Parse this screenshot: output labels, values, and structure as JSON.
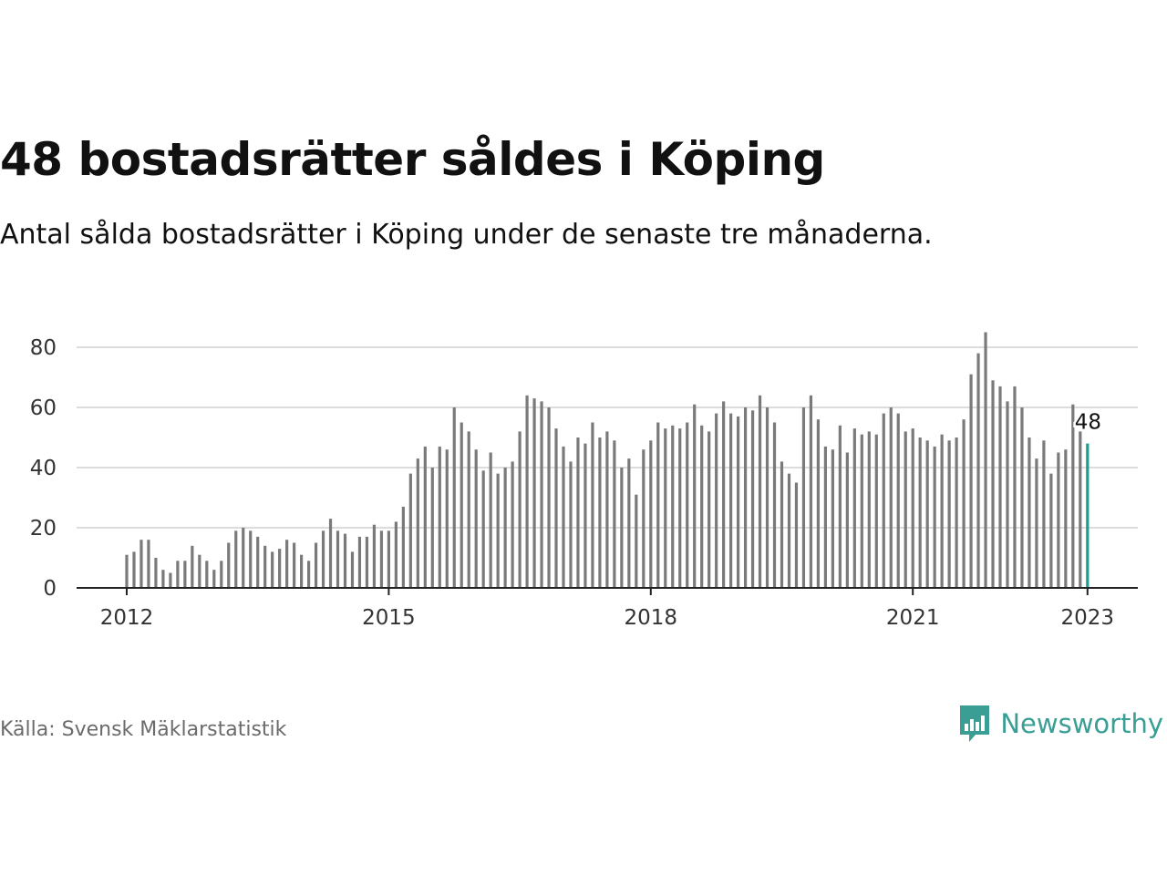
{
  "header": {
    "title": "48 bostadsrätter såldes i Köping",
    "subtitle": "Antal sålda bostadsrätter i Köping under de senaste tre månaderna."
  },
  "footer": {
    "source": "Källa: Svensk Mäklarstatistik",
    "brand": "Newsworthy",
    "brand_icon": "newsworthy-logo-icon",
    "brand_color": "#3a9e95"
  },
  "chart_data": {
    "type": "bar",
    "title": "48 bostadsrätter såldes i Köping",
    "subtitle": "Antal sålda bostadsrätter i Köping under de senaste tre månaderna.",
    "xlabel": "",
    "ylabel": "",
    "start": "2012-01",
    "frequency": "monthly",
    "x_ticks": [
      "2012",
      "2015",
      "2018",
      "2021",
      "2023"
    ],
    "y_ticks": [
      0,
      20,
      40,
      60,
      80
    ],
    "ylim": [
      0,
      85
    ],
    "grid": true,
    "bar_color": "#7a7a7a",
    "highlight_color": "#1a9e95",
    "highlight_label": "48",
    "values": [
      11,
      12,
      16,
      16,
      10,
      6,
      5,
      9,
      9,
      14,
      11,
      9,
      6,
      9,
      15,
      19,
      20,
      19,
      17,
      14,
      12,
      13,
      16,
      15,
      11,
      9,
      15,
      19,
      23,
      19,
      18,
      12,
      17,
      17,
      21,
      19,
      19,
      22,
      27,
      38,
      43,
      47,
      40,
      47,
      46,
      60,
      55,
      52,
      46,
      39,
      45,
      38,
      40,
      42,
      52,
      64,
      63,
      62,
      60,
      53,
      47,
      42,
      50,
      48,
      55,
      50,
      52,
      49,
      40,
      43,
      31,
      46,
      49,
      55,
      53,
      54,
      53,
      55,
      61,
      54,
      52,
      58,
      62,
      58,
      57,
      60,
      59,
      64,
      60,
      55,
      42,
      38,
      35,
      60,
      64,
      56,
      47,
      46,
      54,
      45,
      53,
      51,
      52,
      51,
      58,
      60,
      58,
      52,
      53,
      50,
      49,
      47,
      51,
      49,
      50,
      56,
      71,
      78,
      85,
      69,
      67,
      62,
      67,
      60,
      50,
      43,
      49,
      38,
      45,
      46,
      61,
      52,
      48
    ]
  }
}
